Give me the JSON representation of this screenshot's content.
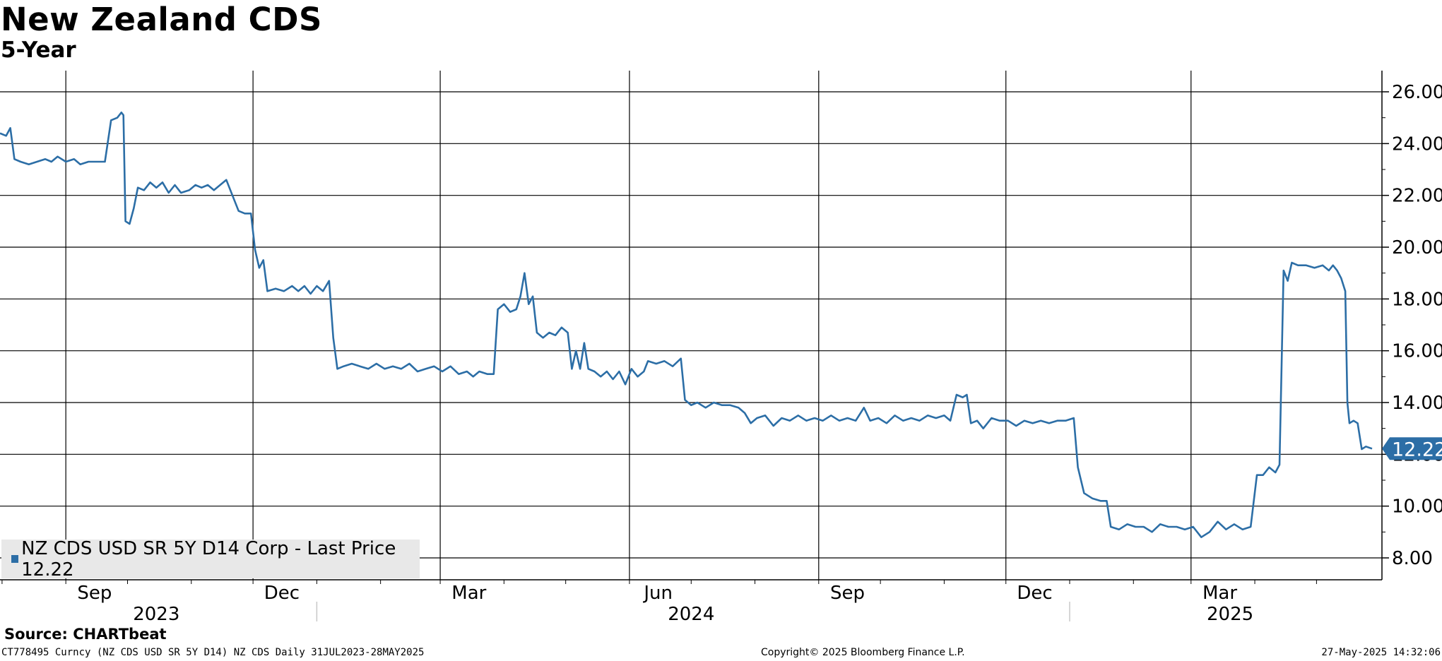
{
  "chart_data": {
    "type": "line",
    "title": "New Zealand CDS",
    "subtitle": "5-Year",
    "yticks": [
      "26.00",
      "24.00",
      "22.00",
      "20.00",
      "18.00",
      "16.00",
      "14.00",
      "12.00",
      "10.00",
      "8.00"
    ],
    "ylim": [
      7.2,
      27.0
    ],
    "xlim": [
      "2023-07-31",
      "2025-05-28"
    ],
    "month_ticks": [
      {
        "label": "Sep",
        "date": "2023-09-15"
      },
      {
        "label": "Dec",
        "date": "2023-12-15"
      },
      {
        "label": "Mar",
        "date": "2024-03-15"
      },
      {
        "label": "Jun",
        "date": "2024-06-15"
      },
      {
        "label": "Sep",
        "date": "2024-09-15"
      },
      {
        "label": "Dec",
        "date": "2024-12-15"
      },
      {
        "label": "Mar",
        "date": "2025-03-15"
      }
    ],
    "gridlines_x": [
      "2023-09-01",
      "2023-12-01",
      "2024-03-01",
      "2024-06-01",
      "2024-09-01",
      "2024-12-01",
      "2025-03-01"
    ],
    "year_labels": [
      {
        "label": "2023",
        "date": "2023-10-15"
      },
      {
        "label": "2024",
        "date": "2024-07-01"
      },
      {
        "label": "2025",
        "date": "2025-03-20"
      }
    ],
    "year_dividers": [
      "2024-01-01",
      "2025-01-01"
    ],
    "grid": true,
    "legend_position": "bottom-left",
    "series": [
      {
        "name": "NZ CDS USD SR 5Y D14 Corp - Last Price",
        "color": "#2c6ea6",
        "last_value_label": "12.22",
        "last_value": 12.22,
        "points": [
          [
            "2023-07-31",
            24.4
          ],
          [
            "2023-08-03",
            24.3
          ],
          [
            "2023-08-05",
            24.6
          ],
          [
            "2023-08-07",
            23.4
          ],
          [
            "2023-08-10",
            23.3
          ],
          [
            "2023-08-14",
            23.2
          ],
          [
            "2023-08-18",
            23.3
          ],
          [
            "2023-08-22",
            23.4
          ],
          [
            "2023-08-25",
            23.3
          ],
          [
            "2023-08-28",
            23.5
          ],
          [
            "2023-09-01",
            23.3
          ],
          [
            "2023-09-05",
            23.4
          ],
          [
            "2023-09-08",
            23.2
          ],
          [
            "2023-09-12",
            23.3
          ],
          [
            "2023-09-16",
            23.3
          ],
          [
            "2023-09-20",
            23.3
          ],
          [
            "2023-09-23",
            24.9
          ],
          [
            "2023-09-26",
            25.0
          ],
          [
            "2023-09-28",
            25.2
          ],
          [
            "2023-09-29",
            25.1
          ],
          [
            "2023-09-30",
            21.0
          ],
          [
            "2023-10-02",
            20.9
          ],
          [
            "2023-10-04",
            21.5
          ],
          [
            "2023-10-06",
            22.3
          ],
          [
            "2023-10-09",
            22.2
          ],
          [
            "2023-10-12",
            22.5
          ],
          [
            "2023-10-15",
            22.3
          ],
          [
            "2023-10-18",
            22.5
          ],
          [
            "2023-10-21",
            22.1
          ],
          [
            "2023-10-24",
            22.4
          ],
          [
            "2023-10-27",
            22.1
          ],
          [
            "2023-10-31",
            22.2
          ],
          [
            "2023-11-03",
            22.4
          ],
          [
            "2023-11-06",
            22.3
          ],
          [
            "2023-11-09",
            22.4
          ],
          [
            "2023-11-12",
            22.2
          ],
          [
            "2023-11-15",
            22.4
          ],
          [
            "2023-11-18",
            22.6
          ],
          [
            "2023-11-21",
            22.0
          ],
          [
            "2023-11-24",
            21.4
          ],
          [
            "2023-11-27",
            21.3
          ],
          [
            "2023-11-30",
            21.3
          ],
          [
            "2023-12-02",
            19.9
          ],
          [
            "2023-12-04",
            19.2
          ],
          [
            "2023-12-06",
            19.5
          ],
          [
            "2023-12-08",
            18.3
          ],
          [
            "2023-12-12",
            18.4
          ],
          [
            "2023-12-16",
            18.3
          ],
          [
            "2023-12-20",
            18.5
          ],
          [
            "2023-12-23",
            18.3
          ],
          [
            "2023-12-26",
            18.5
          ],
          [
            "2023-12-29",
            18.2
          ],
          [
            "2024-01-01",
            18.5
          ],
          [
            "2024-01-04",
            18.3
          ],
          [
            "2024-01-07",
            18.7
          ],
          [
            "2024-01-09",
            16.5
          ],
          [
            "2024-01-11",
            15.3
          ],
          [
            "2024-01-14",
            15.4
          ],
          [
            "2024-01-18",
            15.5
          ],
          [
            "2024-01-22",
            15.4
          ],
          [
            "2024-01-26",
            15.3
          ],
          [
            "2024-01-30",
            15.5
          ],
          [
            "2024-02-03",
            15.3
          ],
          [
            "2024-02-07",
            15.4
          ],
          [
            "2024-02-11",
            15.3
          ],
          [
            "2024-02-15",
            15.5
          ],
          [
            "2024-02-19",
            15.2
          ],
          [
            "2024-02-23",
            15.3
          ],
          [
            "2024-02-27",
            15.4
          ],
          [
            "2024-03-02",
            15.2
          ],
          [
            "2024-03-06",
            15.4
          ],
          [
            "2024-03-10",
            15.1
          ],
          [
            "2024-03-14",
            15.2
          ],
          [
            "2024-03-17",
            15.0
          ],
          [
            "2024-03-20",
            15.2
          ],
          [
            "2024-03-24",
            15.1
          ],
          [
            "2024-03-27",
            15.1
          ],
          [
            "2024-03-29",
            17.6
          ],
          [
            "2024-04-01",
            17.8
          ],
          [
            "2024-04-04",
            17.5
          ],
          [
            "2024-04-07",
            17.6
          ],
          [
            "2024-04-09",
            18.1
          ],
          [
            "2024-04-11",
            19.0
          ],
          [
            "2024-04-13",
            17.8
          ],
          [
            "2024-04-15",
            18.1
          ],
          [
            "2024-04-17",
            16.7
          ],
          [
            "2024-04-20",
            16.5
          ],
          [
            "2024-04-23",
            16.7
          ],
          [
            "2024-04-26",
            16.6
          ],
          [
            "2024-04-29",
            16.9
          ],
          [
            "2024-05-02",
            16.7
          ],
          [
            "2024-05-04",
            15.3
          ],
          [
            "2024-05-06",
            16.0
          ],
          [
            "2024-05-08",
            15.3
          ],
          [
            "2024-05-10",
            16.3
          ],
          [
            "2024-05-12",
            15.3
          ],
          [
            "2024-05-15",
            15.2
          ],
          [
            "2024-05-18",
            15.0
          ],
          [
            "2024-05-21",
            15.2
          ],
          [
            "2024-05-24",
            14.9
          ],
          [
            "2024-05-27",
            15.2
          ],
          [
            "2024-05-30",
            14.7
          ],
          [
            "2024-06-02",
            15.3
          ],
          [
            "2024-06-05",
            15.0
          ],
          [
            "2024-06-08",
            15.2
          ],
          [
            "2024-06-10",
            15.6
          ],
          [
            "2024-06-14",
            15.5
          ],
          [
            "2024-06-18",
            15.6
          ],
          [
            "2024-06-22",
            15.4
          ],
          [
            "2024-06-26",
            15.7
          ],
          [
            "2024-06-28",
            14.1
          ],
          [
            "2024-07-01",
            13.9
          ],
          [
            "2024-07-04",
            14.0
          ],
          [
            "2024-07-08",
            13.8
          ],
          [
            "2024-07-12",
            14.0
          ],
          [
            "2024-07-16",
            13.9
          ],
          [
            "2024-07-20",
            13.9
          ],
          [
            "2024-07-24",
            13.8
          ],
          [
            "2024-07-27",
            13.6
          ],
          [
            "2024-07-30",
            13.2
          ],
          [
            "2024-08-02",
            13.4
          ],
          [
            "2024-08-06",
            13.5
          ],
          [
            "2024-08-10",
            13.1
          ],
          [
            "2024-08-14",
            13.4
          ],
          [
            "2024-08-18",
            13.3
          ],
          [
            "2024-08-22",
            13.5
          ],
          [
            "2024-08-26",
            13.3
          ],
          [
            "2024-08-30",
            13.4
          ],
          [
            "2024-09-03",
            13.3
          ],
          [
            "2024-09-07",
            13.5
          ],
          [
            "2024-09-11",
            13.3
          ],
          [
            "2024-09-15",
            13.4
          ],
          [
            "2024-09-19",
            13.3
          ],
          [
            "2024-09-23",
            13.8
          ],
          [
            "2024-09-26",
            13.3
          ],
          [
            "2024-09-30",
            13.4
          ],
          [
            "2024-10-04",
            13.2
          ],
          [
            "2024-10-08",
            13.5
          ],
          [
            "2024-10-12",
            13.3
          ],
          [
            "2024-10-16",
            13.4
          ],
          [
            "2024-10-20",
            13.3
          ],
          [
            "2024-10-24",
            13.5
          ],
          [
            "2024-10-28",
            13.4
          ],
          [
            "2024-11-01",
            13.5
          ],
          [
            "2024-11-04",
            13.3
          ],
          [
            "2024-11-07",
            14.3
          ],
          [
            "2024-11-10",
            14.2
          ],
          [
            "2024-11-12",
            14.3
          ],
          [
            "2024-11-14",
            13.2
          ],
          [
            "2024-11-17",
            13.3
          ],
          [
            "2024-11-20",
            13.0
          ],
          [
            "2024-11-24",
            13.4
          ],
          [
            "2024-11-28",
            13.3
          ],
          [
            "2024-12-02",
            13.3
          ],
          [
            "2024-12-06",
            13.1
          ],
          [
            "2024-12-10",
            13.3
          ],
          [
            "2024-12-14",
            13.2
          ],
          [
            "2024-12-18",
            13.3
          ],
          [
            "2024-12-22",
            13.2
          ],
          [
            "2024-12-26",
            13.3
          ],
          [
            "2024-12-30",
            13.3
          ],
          [
            "2025-01-03",
            13.4
          ],
          [
            "2025-01-05",
            11.5
          ],
          [
            "2025-01-08",
            10.5
          ],
          [
            "2025-01-12",
            10.3
          ],
          [
            "2025-01-16",
            10.2
          ],
          [
            "2025-01-19",
            10.2
          ],
          [
            "2025-01-21",
            9.2
          ],
          [
            "2025-01-25",
            9.1
          ],
          [
            "2025-01-29",
            9.3
          ],
          [
            "2025-02-02",
            9.2
          ],
          [
            "2025-02-06",
            9.2
          ],
          [
            "2025-02-10",
            9.0
          ],
          [
            "2025-02-14",
            9.3
          ],
          [
            "2025-02-18",
            9.2
          ],
          [
            "2025-02-22",
            9.2
          ],
          [
            "2025-02-26",
            9.1
          ],
          [
            "2025-03-02",
            9.2
          ],
          [
            "2025-03-06",
            8.8
          ],
          [
            "2025-03-10",
            9.0
          ],
          [
            "2025-03-14",
            9.4
          ],
          [
            "2025-03-18",
            9.1
          ],
          [
            "2025-03-22",
            9.3
          ],
          [
            "2025-03-26",
            9.1
          ],
          [
            "2025-03-30",
            9.2
          ],
          [
            "2025-04-02",
            11.2
          ],
          [
            "2025-04-05",
            11.2
          ],
          [
            "2025-04-08",
            11.5
          ],
          [
            "2025-04-11",
            11.3
          ],
          [
            "2025-04-13",
            11.6
          ],
          [
            "2025-04-15",
            19.1
          ],
          [
            "2025-04-17",
            18.7
          ],
          [
            "2025-04-19",
            19.4
          ],
          [
            "2025-04-22",
            19.3
          ],
          [
            "2025-04-26",
            19.3
          ],
          [
            "2025-04-30",
            19.2
          ],
          [
            "2025-05-04",
            19.3
          ],
          [
            "2025-05-07",
            19.1
          ],
          [
            "2025-05-09",
            19.3
          ],
          [
            "2025-05-11",
            19.1
          ],
          [
            "2025-05-13",
            18.8
          ],
          [
            "2025-05-15",
            18.3
          ],
          [
            "2025-05-16",
            14.0
          ],
          [
            "2025-05-17",
            13.2
          ],
          [
            "2025-05-19",
            13.3
          ],
          [
            "2025-05-21",
            13.2
          ],
          [
            "2025-05-23",
            12.2
          ],
          [
            "2025-05-25",
            12.3
          ],
          [
            "2025-05-28",
            12.22
          ]
        ]
      }
    ]
  },
  "legend": {
    "text": "NZ CDS USD SR 5Y D14 Corp - Last Price 12.22"
  },
  "source": "Source: CHARTbeat",
  "footer": {
    "left": "CT778495 Curncy (NZ CDS USD SR 5Y D14) NZ CDS  Daily 31JUL2023-28MAY2025",
    "mid": "Copyright© 2025 Bloomberg Finance L.P.",
    "right": "27-May-2025 14:32:06"
  }
}
